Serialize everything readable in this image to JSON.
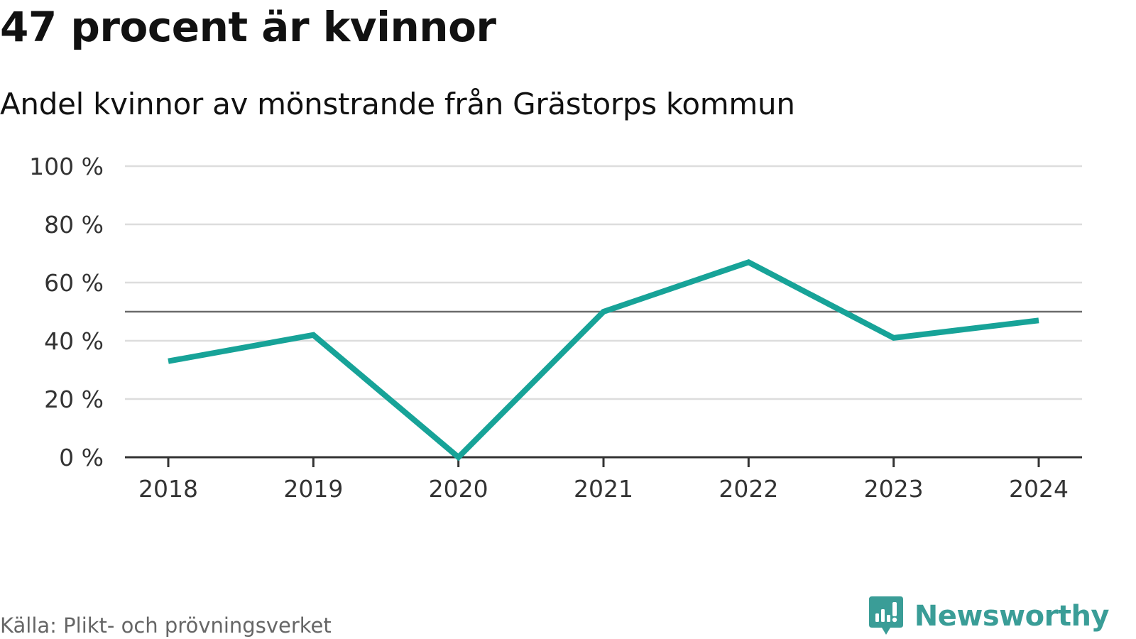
{
  "title": "47 procent är kvinnor",
  "subtitle": "Andel kvinnor av mönstrande från Grästorps kommun",
  "source": "Källa: Plikt- och prövningsverket",
  "brand": "Newsworthy",
  "colors": {
    "line": "#17a398",
    "reference_line": "#6b6b6b",
    "gridline": "#dddddd",
    "axis": "#333333",
    "brand": "#3a9d97"
  },
  "chart_data": {
    "type": "line",
    "title": "47 procent är kvinnor",
    "subtitle": "Andel kvinnor av mönstrande från Grästorps kommun",
    "xlabel": "",
    "ylabel": "",
    "categories": [
      "2018",
      "2019",
      "2020",
      "2021",
      "2022",
      "2023",
      "2024"
    ],
    "series": [
      {
        "name": "Andel kvinnor",
        "values": [
          33,
          42,
          0,
          50,
          67,
          41,
          47
        ]
      }
    ],
    "reference_line": 50,
    "ylim": [
      0,
      100
    ],
    "yticks": [
      0,
      20,
      40,
      60,
      80,
      100
    ],
    "ytick_labels": [
      "0 %",
      "20 %",
      "40 %",
      "60 %",
      "80 %",
      "100 %"
    ],
    "grid": true,
    "legend": "none"
  }
}
